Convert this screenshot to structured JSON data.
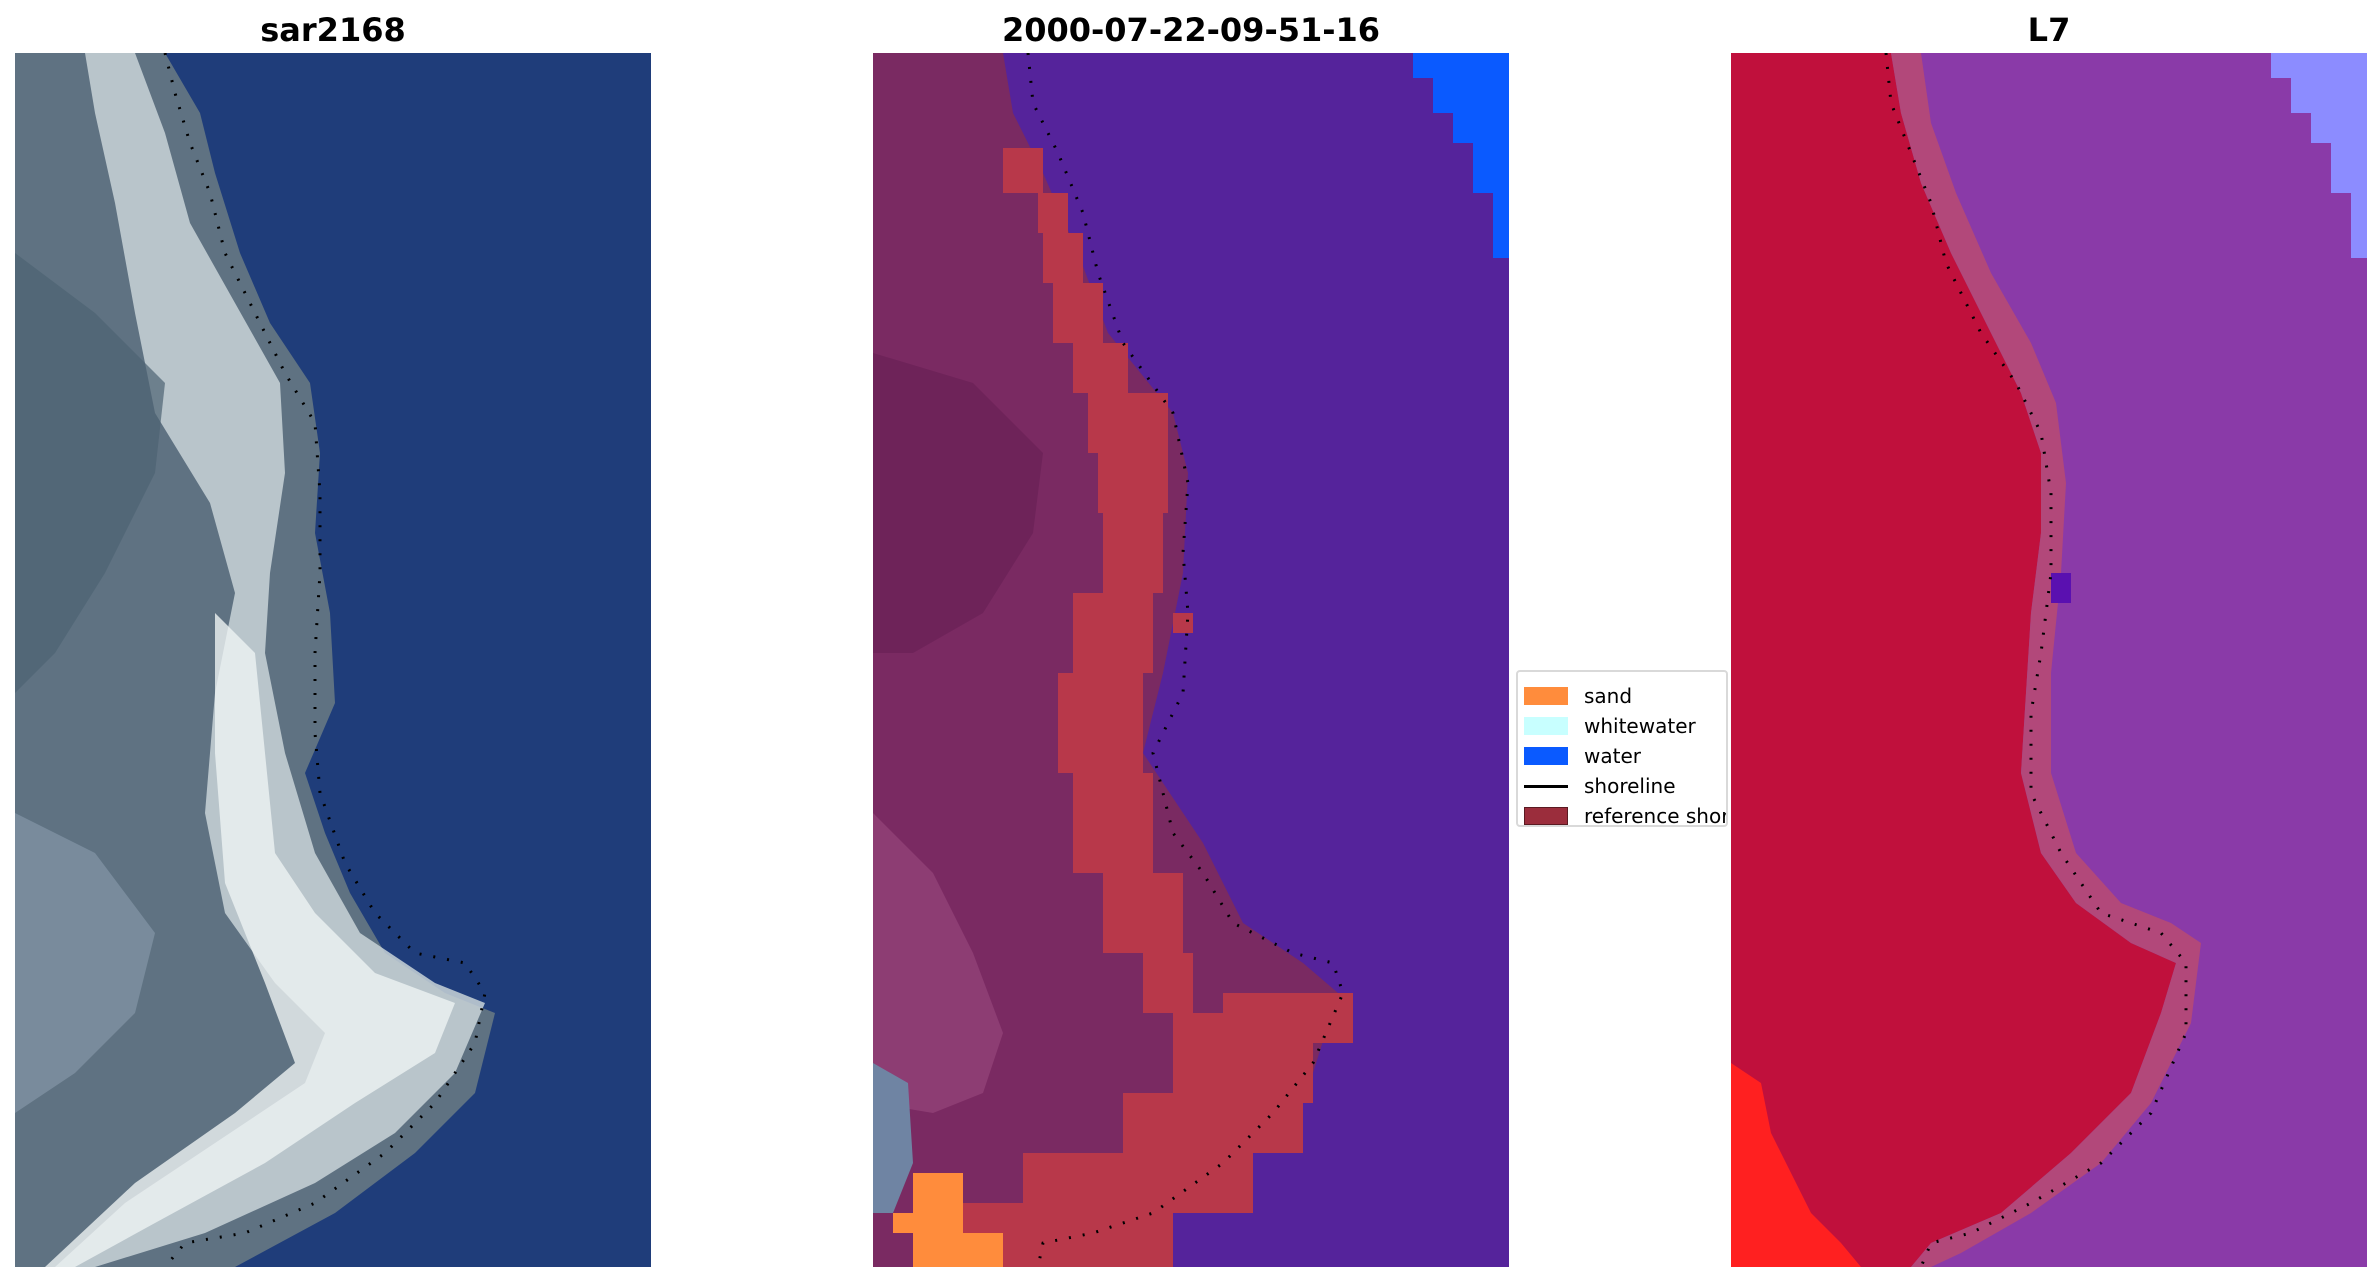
{
  "panels": [
    {
      "title": "sar2168"
    },
    {
      "title": "2000-07-22-09-51-16"
    },
    {
      "title": "L7"
    }
  ],
  "legend": {
    "items": [
      {
        "label": "sand",
        "kind": "patch",
        "color": "#ff8c3c"
      },
      {
        "label": "whitewater",
        "kind": "patch",
        "color": "#c8ffff"
      },
      {
        "label": "water",
        "kind": "patch",
        "color": "#0a5aff"
      },
      {
        "label": "shoreline",
        "kind": "line",
        "color": "#000000"
      },
      {
        "label": "reference shoreline buffer",
        "kind": "patch",
        "color": "#9b2d3c"
      }
    ]
  },
  "colors": {
    "rgb_water": "#1e3c78",
    "rgb_land": "#6a7c8c",
    "rgb_beach": "#dde6ea",
    "class_water": "#55239b",
    "class_land": "#7a2a62",
    "class_buffer": "#b8384a",
    "nir_land": "#c0103c",
    "nir_water": "#8a3aa8",
    "nir_whitewater": "#8c8cff",
    "nir_red": "#ff2020",
    "shoreline": "#000000"
  }
}
